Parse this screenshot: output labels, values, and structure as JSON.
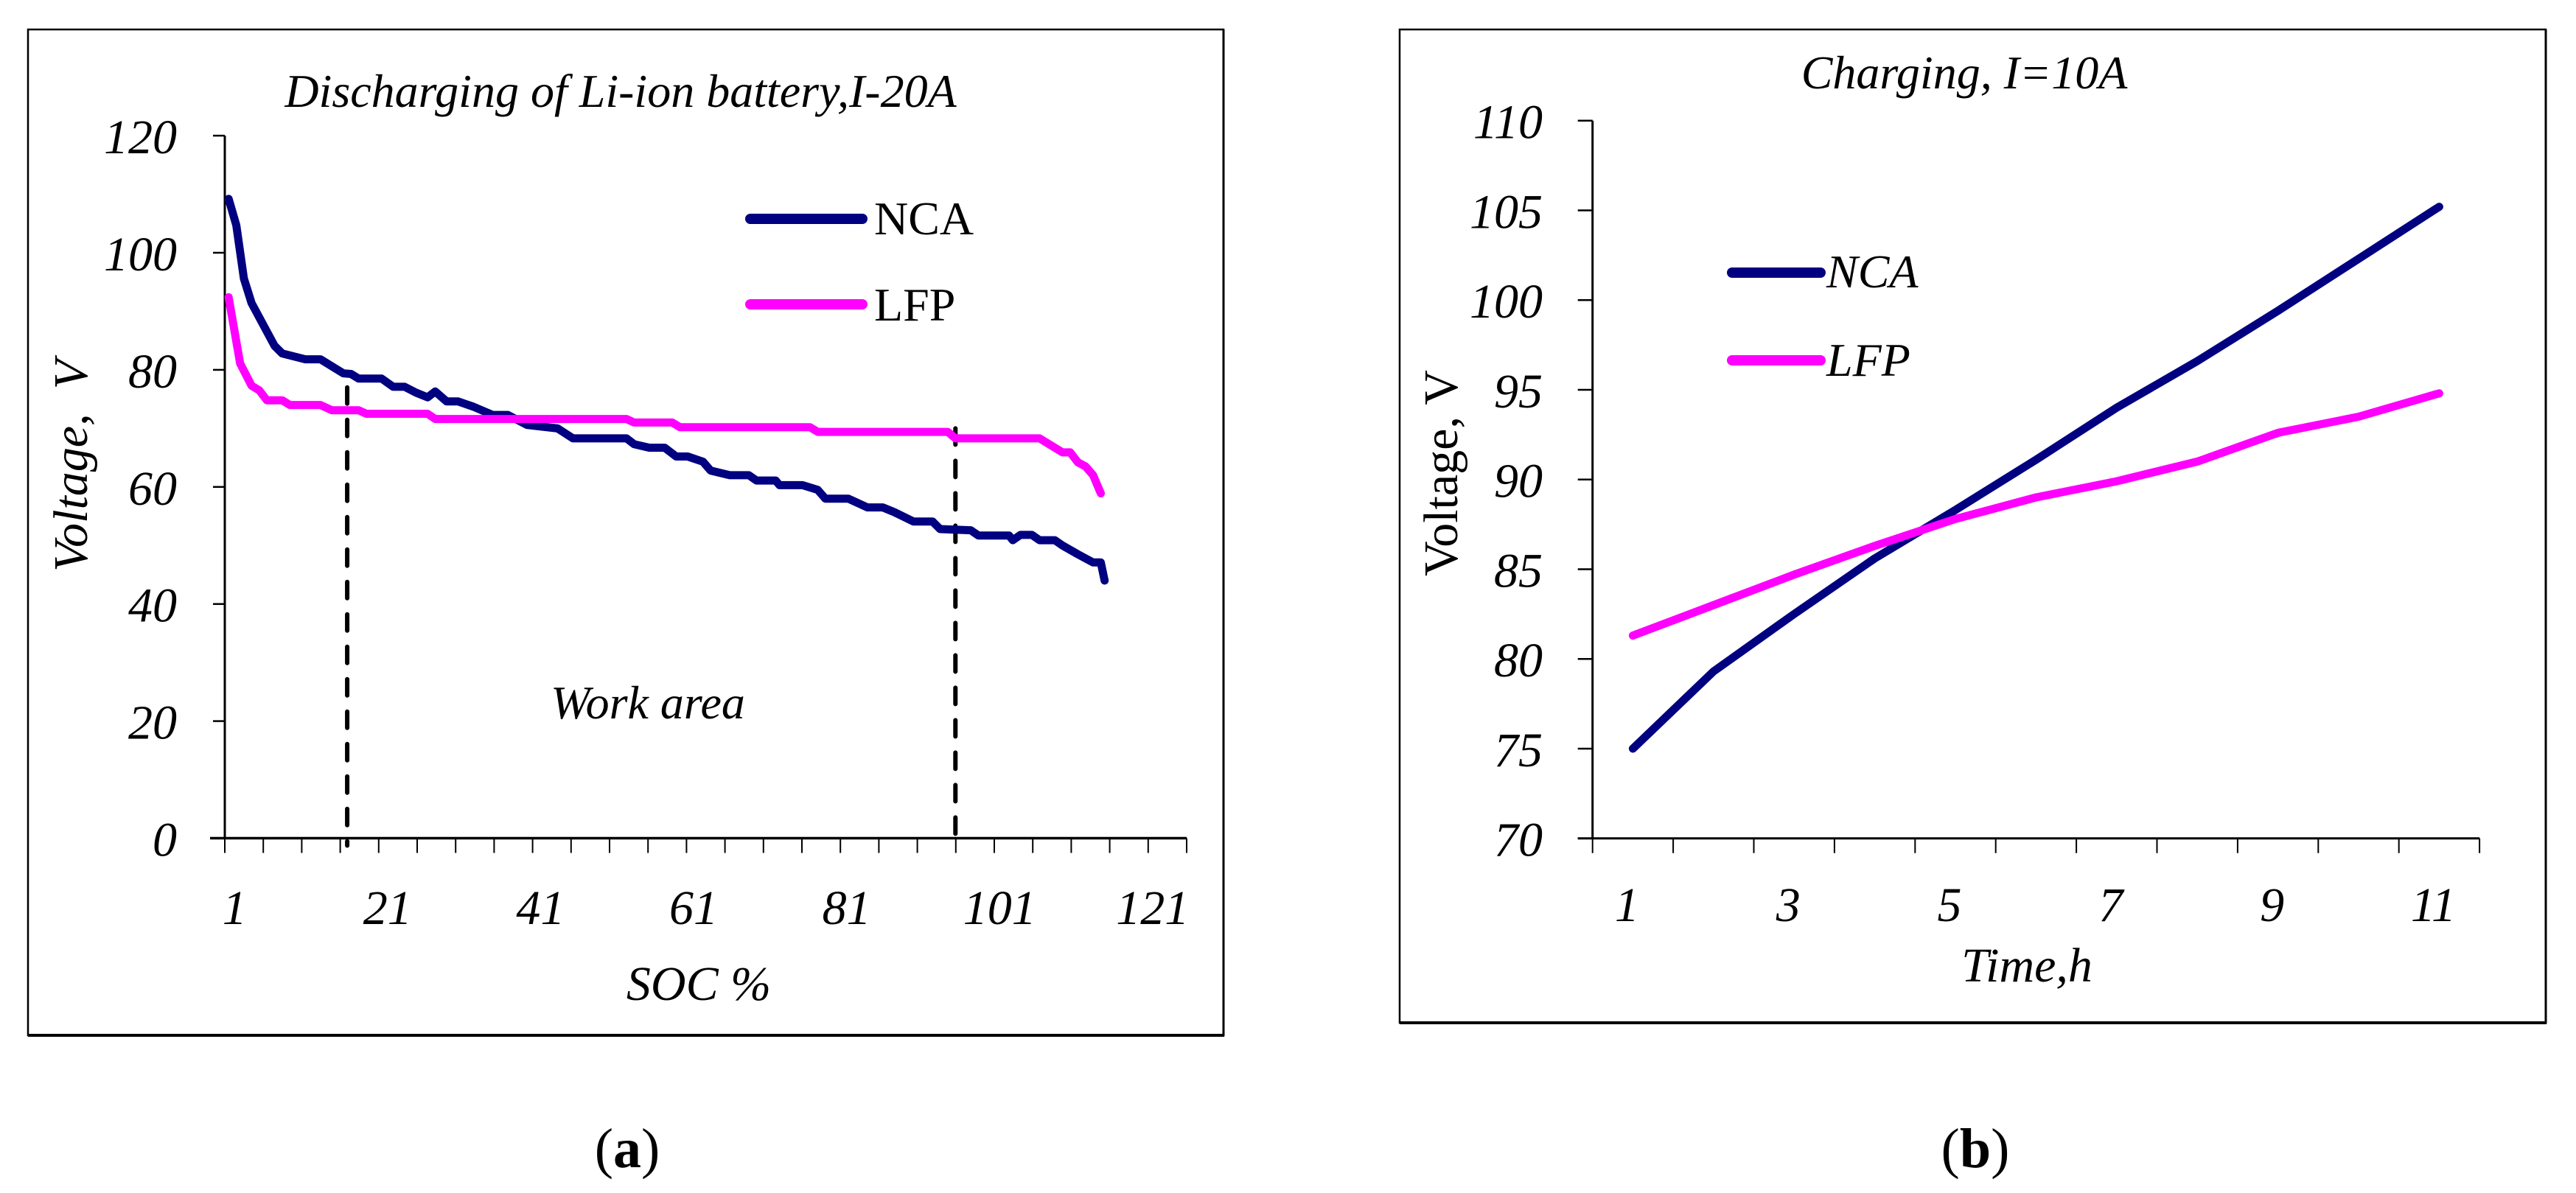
{
  "figure": {
    "panel_labels": [
      {
        "open": "(",
        "letter": "a",
        "close": ")"
      },
      {
        "open": "(",
        "letter": "b",
        "close": ")"
      }
    ]
  },
  "panels": [
    {
      "id": "a",
      "title": "Discharging of Li-ion battery,I-20A",
      "xlabel": "SOC %",
      "ylabel": "Voltage,  V",
      "annotation": "Work area",
      "legend": [
        {
          "label": "NCA",
          "color": "#000080"
        },
        {
          "label": "LFP",
          "color": "#FF00FF"
        }
      ],
      "y_ticks": [
        "0",
        "20",
        "40",
        "60",
        "80",
        "100",
        "120"
      ],
      "x_ticks": [
        "1",
        "21",
        "41",
        "61",
        "81",
        "101",
        "121"
      ]
    },
    {
      "id": "b",
      "title": "Charging, I=10A",
      "xlabel": "Time,h",
      "ylabel": "Voltage, V",
      "legend": [
        {
          "label": "NCA",
          "color": "#000080"
        },
        {
          "label": "LFP",
          "color": "#FF00FF"
        }
      ],
      "y_ticks": [
        "70",
        "75",
        "80",
        "85",
        "90",
        "95",
        "100",
        "105",
        "110"
      ],
      "x_ticks": [
        "1",
        "3",
        "5",
        "7",
        "9",
        "11"
      ]
    }
  ],
  "chart_data": [
    {
      "type": "line",
      "title": "Discharging of Li-ion battery,I-20A",
      "xlabel": "SOC %",
      "ylabel": "Voltage, V",
      "xlim": [
        0.5,
        125.5
      ],
      "ylim": [
        0,
        120
      ],
      "x_tick_labels": [
        1,
        21,
        41,
        61,
        81,
        101,
        121
      ],
      "y_tick_labels": [
        0,
        20,
        40,
        60,
        80,
        100,
        120
      ],
      "grid": false,
      "legend_position": "upper right",
      "annotations": [
        {
          "text": "Work area",
          "x": 41,
          "y": 23
        },
        {
          "type": "vline",
          "style": "dashed",
          "x": 16.5,
          "y_top": 77
        },
        {
          "type": "vline",
          "style": "dashed",
          "x": 96,
          "y_top": 70
        }
      ],
      "series": [
        {
          "name": "NCA",
          "color": "#000080",
          "points": [
            [
              1,
              109.2
            ],
            [
              2,
              104.7
            ],
            [
              3,
              95.6
            ],
            [
              4,
              91.4
            ],
            [
              7,
              84.1
            ],
            [
              8,
              82.8
            ],
            [
              11,
              81.8
            ],
            [
              13,
              81.8
            ],
            [
              16,
              79.4
            ],
            [
              17,
              79.3
            ],
            [
              18,
              78.5
            ],
            [
              21,
              78.5
            ],
            [
              22.5,
              77.1
            ],
            [
              24,
              77.1
            ],
            [
              25.5,
              76.1
            ],
            [
              27,
              75.3
            ],
            [
              28,
              76.3
            ],
            [
              29.5,
              74.6
            ],
            [
              31,
              74.6
            ],
            [
              33,
              73.7
            ],
            [
              35.5,
              72.3
            ],
            [
              37.5,
              72.3
            ],
            [
              40,
              70.6
            ],
            [
              44,
              70.0
            ],
            [
              46,
              68.3
            ],
            [
              53,
              68.3
            ],
            [
              54,
              67.3
            ],
            [
              56,
              66.7
            ],
            [
              58,
              66.7
            ],
            [
              59.5,
              65.2
            ],
            [
              61,
              65.2
            ],
            [
              63,
              64.3
            ],
            [
              64,
              62.8
            ],
            [
              66.5,
              62.0
            ],
            [
              69,
              62.0
            ],
            [
              70,
              61.1
            ],
            [
              72.5,
              61.1
            ],
            [
              73,
              60.3
            ],
            [
              76,
              60.3
            ],
            [
              78,
              59.5
            ],
            [
              79,
              58.0
            ],
            [
              82,
              58.0
            ],
            [
              84.5,
              56.5
            ],
            [
              86.5,
              56.5
            ],
            [
              88,
              55.7
            ],
            [
              90.5,
              54.1
            ],
            [
              93,
              54.1
            ],
            [
              94,
              52.8
            ],
            [
              98,
              52.6
            ],
            [
              99,
              51.7
            ],
            [
              103,
              51.7
            ],
            [
              103.5,
              50.9
            ],
            [
              104.5,
              51.8
            ],
            [
              106,
              51.8
            ],
            [
              107,
              50.9
            ],
            [
              109,
              50.9
            ],
            [
              110,
              50.0
            ],
            [
              112,
              48.5
            ],
            [
              114,
              47.1
            ],
            [
              115,
              47.1
            ],
            [
              115.5,
              44.0
            ]
          ]
        },
        {
          "name": "LFP",
          "color": "#FF00FF",
          "points": [
            [
              1,
              92.4
            ],
            [
              2.5,
              81.1
            ],
            [
              4,
              77.3
            ],
            [
              5,
              76.5
            ],
            [
              6,
              74.8
            ],
            [
              8,
              74.8
            ],
            [
              9,
              74.0
            ],
            [
              13,
              74.0
            ],
            [
              14.5,
              73.1
            ],
            [
              18,
              73.1
            ],
            [
              19,
              72.5
            ],
            [
              27,
              72.5
            ],
            [
              28,
              71.6
            ],
            [
              53,
              71.6
            ],
            [
              54,
              71.0
            ],
            [
              59,
              71.0
            ],
            [
              60,
              70.2
            ],
            [
              77,
              70.2
            ],
            [
              78,
              69.4
            ],
            [
              95,
              69.4
            ],
            [
              96,
              68.3
            ],
            [
              107,
              68.3
            ],
            [
              108.5,
              67.1
            ],
            [
              110,
              65.9
            ],
            [
              111,
              65.9
            ],
            [
              112,
              64.2
            ],
            [
              113,
              63.5
            ],
            [
              114,
              62.0
            ],
            [
              115,
              58.9
            ]
          ]
        }
      ]
    },
    {
      "type": "line",
      "title": "Charging, I=10A",
      "xlabel": "Time,h",
      "ylabel": "Voltage, V",
      "xlim": [
        0.5,
        11.5
      ],
      "ylim": [
        70,
        110
      ],
      "x_tick_labels": [
        1,
        3,
        5,
        7,
        9,
        11
      ],
      "y_tick_labels": [
        70,
        75,
        80,
        85,
        90,
        95,
        100,
        105,
        110
      ],
      "grid": false,
      "legend_position": "upper left",
      "x": [
        1,
        2,
        3,
        4,
        5,
        6,
        7,
        8,
        9,
        10,
        11
      ],
      "series": [
        {
          "name": "NCA",
          "color": "#000080",
          "values": [
            75.0,
            79.3,
            82.5,
            85.6,
            88.3,
            91.1,
            94.0,
            96.6,
            99.4,
            102.3,
            105.2
          ]
        },
        {
          "name": "LFP",
          "color": "#FF00FF",
          "values": [
            81.3,
            83.0,
            84.7,
            86.3,
            87.8,
            89.0,
            89.9,
            91.0,
            92.6,
            93.5,
            94.8
          ]
        }
      ]
    }
  ]
}
